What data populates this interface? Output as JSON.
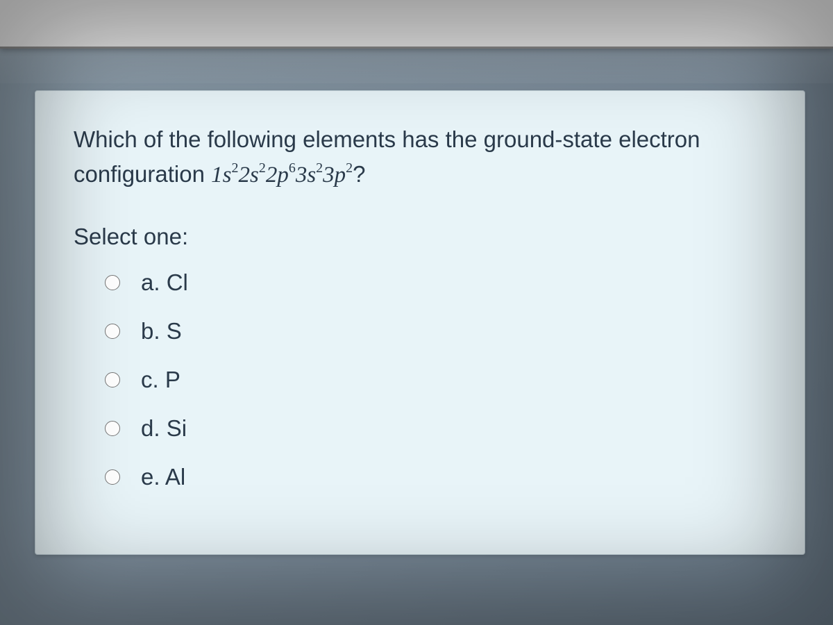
{
  "question": {
    "prompt_part1": "Which of the following elements has the ground-state electron configuration ",
    "formula_html": "1s²2s²2p⁶3s²3p²",
    "prompt_part2": "?",
    "select_label": "Select one:",
    "options": [
      {
        "letter": "a.",
        "text": "Cl"
      },
      {
        "letter": "b.",
        "text": "S"
      },
      {
        "letter": "c.",
        "text": "P"
      },
      {
        "letter": "d.",
        "text": "Si"
      },
      {
        "letter": "e.",
        "text": "Al"
      }
    ]
  },
  "styling": {
    "card_background": "#e8f4f8",
    "text_color": "#2a3a4a",
    "body_gradient_start": "#8a9ba8",
    "body_gradient_end": "#6a7a88",
    "font_size_main": 33,
    "card_border": "#c0d0d8"
  }
}
